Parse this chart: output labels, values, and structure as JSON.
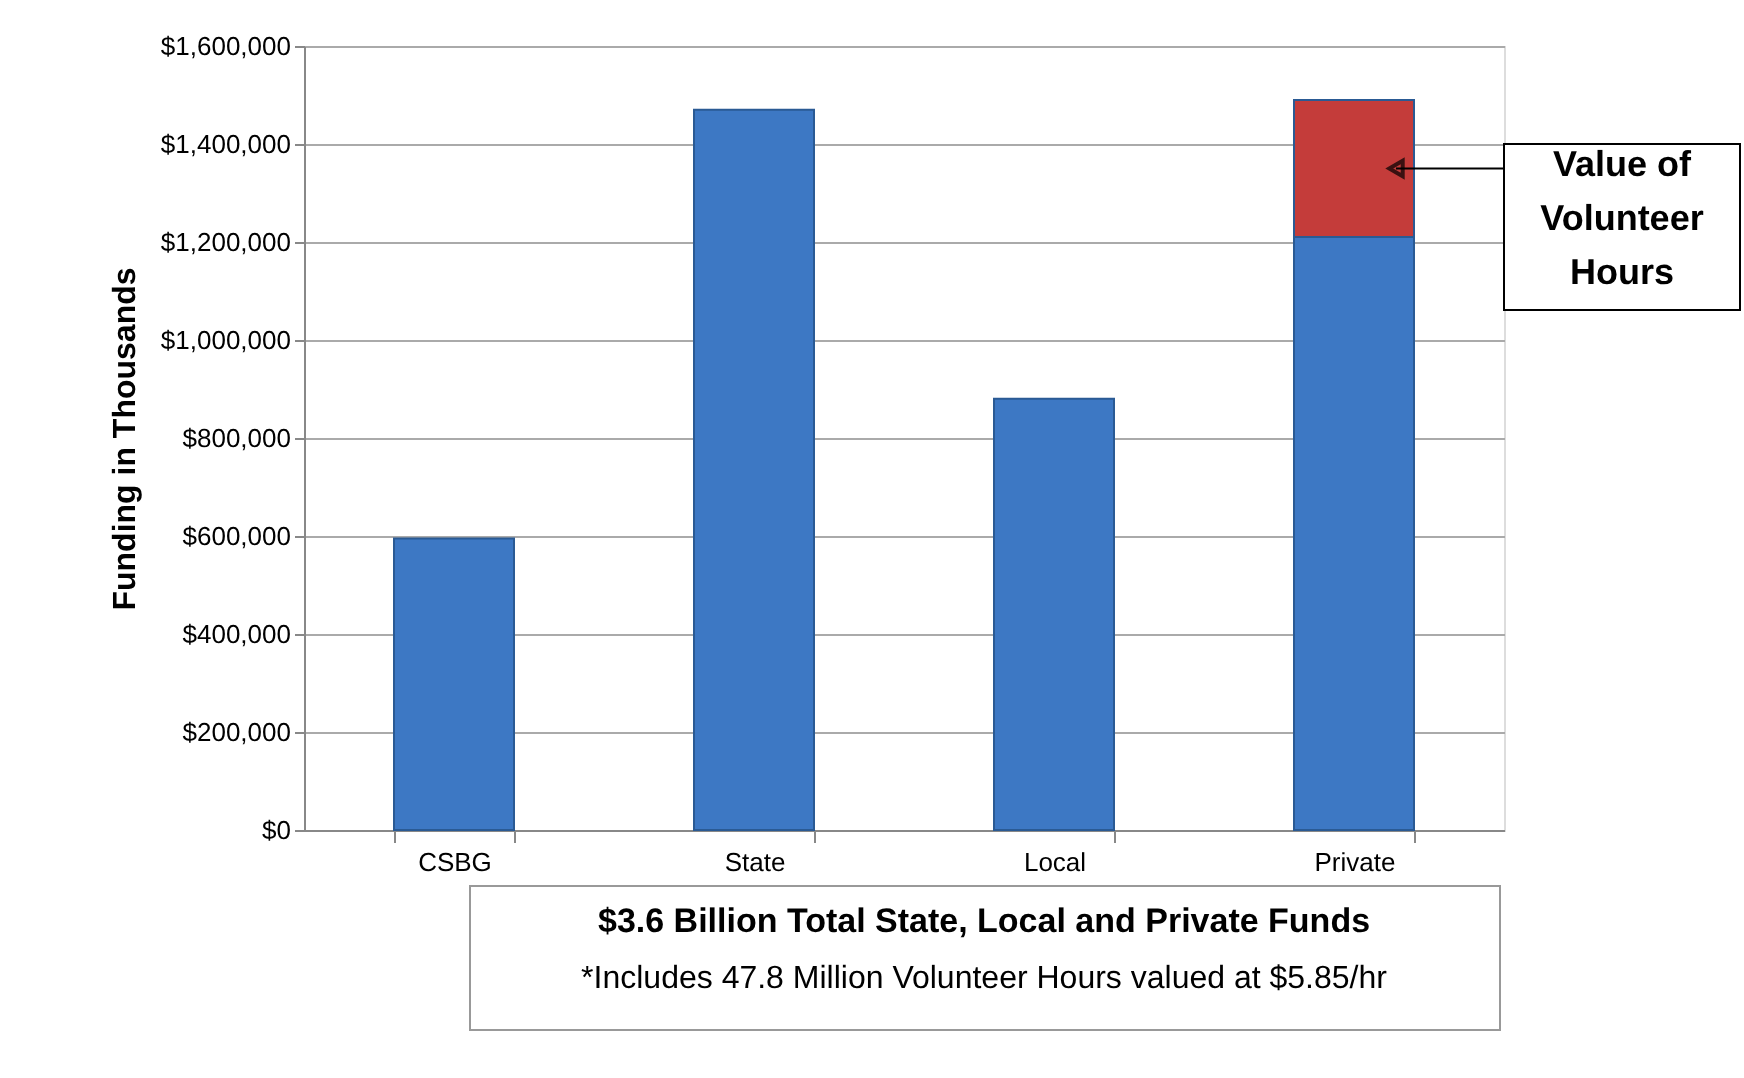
{
  "chart_data": {
    "type": "bar",
    "stacked": true,
    "ylabel": "Funding in Thousands",
    "categories": [
      "CSBG",
      "State",
      "Local",
      "Private"
    ],
    "series": [
      {
        "color": "#3d78c4",
        "values": [
          595000,
          1470000,
          880000,
          1210000
        ]
      },
      {
        "name": "Value of Volunteer Hours",
        "color": "#c43c3a",
        "values": [
          null,
          null,
          null,
          280000
        ]
      }
    ],
    "ylim": [
      0,
      1600000
    ],
    "yticks": [
      {
        "value": 0,
        "label": "$0"
      },
      {
        "value": 200000,
        "label": "$200,000"
      },
      {
        "value": 400000,
        "label": "$400,000"
      },
      {
        "value": 600000,
        "label": "$600,000"
      },
      {
        "value": 800000,
        "label": "$800,000"
      },
      {
        "value": 1000000,
        "label": "$1,000,000"
      },
      {
        "value": 1200000,
        "label": "$1,200,000"
      },
      {
        "value": 1400000,
        "label": "$1,400,000"
      },
      {
        "value": 1600000,
        "label": "$1,600,000"
      }
    ],
    "grid": "y",
    "legend": false,
    "annotations": [
      "$3.6 Billion Total State, Local and Private Funds",
      "*Includes 47.8 Million Volunteer Hours valued at $5.85/hr"
    ]
  }
}
